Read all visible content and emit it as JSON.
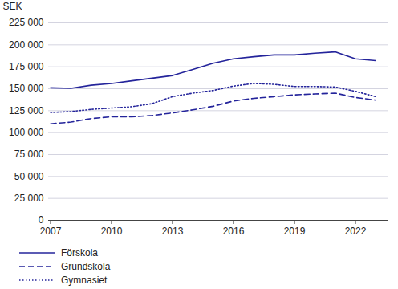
{
  "chart_data": {
    "type": "line",
    "ylabel": "SEK",
    "x": [
      2007,
      2008,
      2009,
      2010,
      2011,
      2012,
      2013,
      2014,
      2015,
      2016,
      2017,
      2018,
      2019,
      2020,
      2021,
      2022,
      2023
    ],
    "series": [
      {
        "name": "Förskola",
        "color": "#24249b",
        "line_style": "solid",
        "values": [
          151000,
          150500,
          154000,
          156000,
          159000,
          162000,
          165000,
          172000,
          179000,
          184000,
          186500,
          188500,
          188500,
          190500,
          192000,
          184000,
          182000
        ]
      },
      {
        "name": "Grundskola",
        "color": "#24249b",
        "line_style": "dashed",
        "values": [
          110000,
          112000,
          116000,
          118000,
          118000,
          119500,
          122500,
          126000,
          130000,
          136000,
          139000,
          141000,
          143000,
          144000,
          145000,
          140000,
          137000
        ]
      },
      {
        "name": "Gymnasiet",
        "color": "#24249b",
        "line_style": "dotted",
        "values": [
          123000,
          124000,
          126500,
          128000,
          129500,
          133000,
          141000,
          145000,
          148000,
          153000,
          156000,
          155000,
          152500,
          152500,
          152000,
          147000,
          141000
        ]
      }
    ],
    "xlim": [
      2006.9,
      2023.6
    ],
    "xticks": [
      2007,
      2010,
      2013,
      2016,
      2019,
      2022
    ],
    "ylim": [
      0,
      225000
    ],
    "yticks": [
      0,
      {
        "value": 25000,
        "label": "25 000"
      },
      {
        "value": 50000,
        "label": "50 000"
      },
      {
        "value": 75000,
        "label": "75 000"
      },
      {
        "value": 100000,
        "label": "100 000"
      },
      {
        "value": 125000,
        "label": "125 000"
      },
      {
        "value": 150000,
        "label": "150 000"
      },
      {
        "value": 175000,
        "label": "175 000"
      },
      {
        "value": 200000,
        "label": "200 000"
      },
      {
        "value": 225000,
        "label": "225 000"
      }
    ],
    "grid": true,
    "legend": "bottom"
  }
}
